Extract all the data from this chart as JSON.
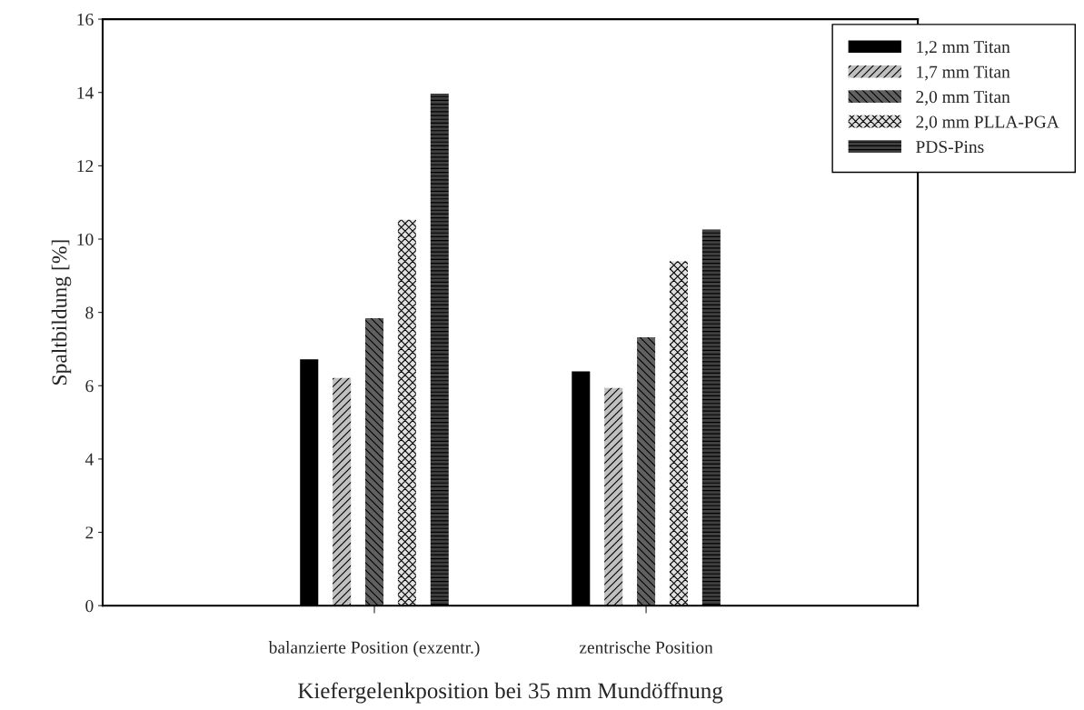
{
  "chart_data": {
    "type": "bar",
    "xlabel": "Kiefergelenkposition bei 35 mm Mundöffnung",
    "ylabel": "Spaltbildung [%]",
    "categories": [
      "balanzierte Position (exzentr.)",
      "zentrische Position"
    ],
    "series": [
      {
        "name": "1,2 mm Titan",
        "color": "#000000",
        "values": [
          6.72,
          6.39
        ]
      },
      {
        "name": "1,7 mm Titan",
        "color": "#c0c0c0",
        "values": [
          6.21,
          5.94
        ]
      },
      {
        "name": "2,0 mm Titan",
        "color": "#606060",
        "values": [
          7.84,
          7.32
        ]
      },
      {
        "name": "2,0 mm PLLA-PGA",
        "color": "#e0e0e0",
        "values": [
          10.53,
          9.4
        ]
      },
      {
        "name": "PDS-Pins",
        "color": "#404040",
        "values": [
          13.97,
          10.26
        ]
      }
    ],
    "ylim": [
      0,
      16
    ],
    "yticks": [
      0,
      2,
      4,
      6,
      8,
      10,
      12,
      14,
      16
    ],
    "grid": false,
    "legend": "top right"
  }
}
